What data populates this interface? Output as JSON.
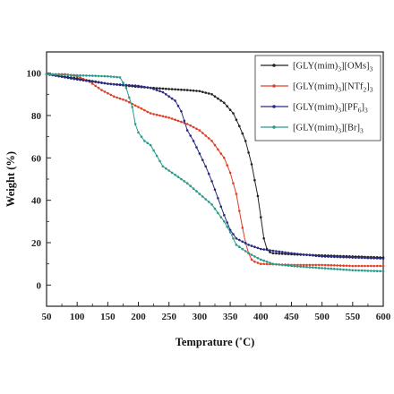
{
  "chart_data": {
    "type": "line",
    "xlabel": "Temprature (˚C)",
    "ylabel": "Weight (%)",
    "xlim": [
      50,
      600
    ],
    "ylim": [
      -10,
      110
    ],
    "xticks": [
      "50",
      "100",
      "150",
      "200",
      "250",
      "300",
      "350",
      "400",
      "450",
      "500",
      "550",
      "600"
    ],
    "yticks": [
      "0",
      "20",
      "40",
      "60",
      "80",
      "100"
    ],
    "legend_position": "top-right",
    "series": [
      {
        "name_main": "[GLY(mim)",
        "name_mid": "][OMs]",
        "sub1": "3",
        "sub2": "3",
        "color": "#222222",
        "x": [
          50,
          100,
          150,
          200,
          250,
          280,
          300,
          320,
          340,
          355,
          365,
          375,
          385,
          395,
          400,
          405,
          410,
          415,
          420,
          450,
          500,
          550,
          600
        ],
        "y": [
          99.5,
          97.5,
          95,
          93.5,
          92.5,
          92,
          91.5,
          90,
          86,
          81,
          75,
          68,
          57,
          42,
          32,
          22,
          17,
          15.5,
          15,
          14.5,
          14,
          13.5,
          13
        ]
      },
      {
        "name_main": "[GLY(mim)",
        "name_mid": "][NTf",
        "sub1": "3",
        "sub2": "2",
        "name_end": "]",
        "sub3": "3",
        "color": "#e04028",
        "x": [
          50,
          80,
          100,
          120,
          140,
          160,
          180,
          200,
          220,
          250,
          280,
          300,
          320,
          340,
          350,
          360,
          365,
          370,
          375,
          380,
          385,
          390,
          400,
          450,
          500,
          550,
          600
        ],
        "y": [
          99.5,
          99.5,
          98.5,
          96,
          92,
          89,
          87,
          84,
          81,
          79,
          76,
          73,
          68,
          60,
          53,
          43,
          35,
          27,
          20,
          15,
          12,
          11,
          10,
          9.5,
          9.5,
          9,
          9
        ]
      },
      {
        "name_main": "[GLY(mim)",
        "name_mid": "][PF",
        "sub1": "3",
        "sub2": "6",
        "name_end": "]",
        "sub3": "3",
        "color": "#2a2a80",
        "x": [
          50,
          100,
          150,
          200,
          220,
          240,
          260,
          270,
          280,
          290,
          300,
          310,
          320,
          330,
          340,
          350,
          360,
          380,
          400,
          450,
          500,
          550,
          600
        ],
        "y": [
          99.5,
          97,
          95,
          94,
          93,
          91,
          87,
          82,
          73,
          68,
          62,
          56,
          49,
          41,
          33,
          26,
          22,
          19,
          17,
          15,
          13.5,
          13,
          12.5
        ]
      },
      {
        "name_main": "[GLY(mim)",
        "name_mid": "][Br]",
        "sub1": "3",
        "sub2": "3",
        "color": "#2a9a8a",
        "x": [
          50,
          100,
          150,
          170,
          180,
          190,
          195,
          200,
          210,
          220,
          230,
          240,
          260,
          280,
          300,
          320,
          340,
          350,
          360,
          380,
          400,
          420,
          450,
          500,
          550,
          600
        ],
        "y": [
          99.5,
          99,
          98.5,
          98,
          93,
          84,
          76,
          72,
          68,
          66,
          61,
          56,
          52,
          48,
          43,
          38,
          30,
          25,
          19,
          15,
          12,
          10,
          9,
          8,
          7,
          6.5
        ]
      }
    ]
  }
}
